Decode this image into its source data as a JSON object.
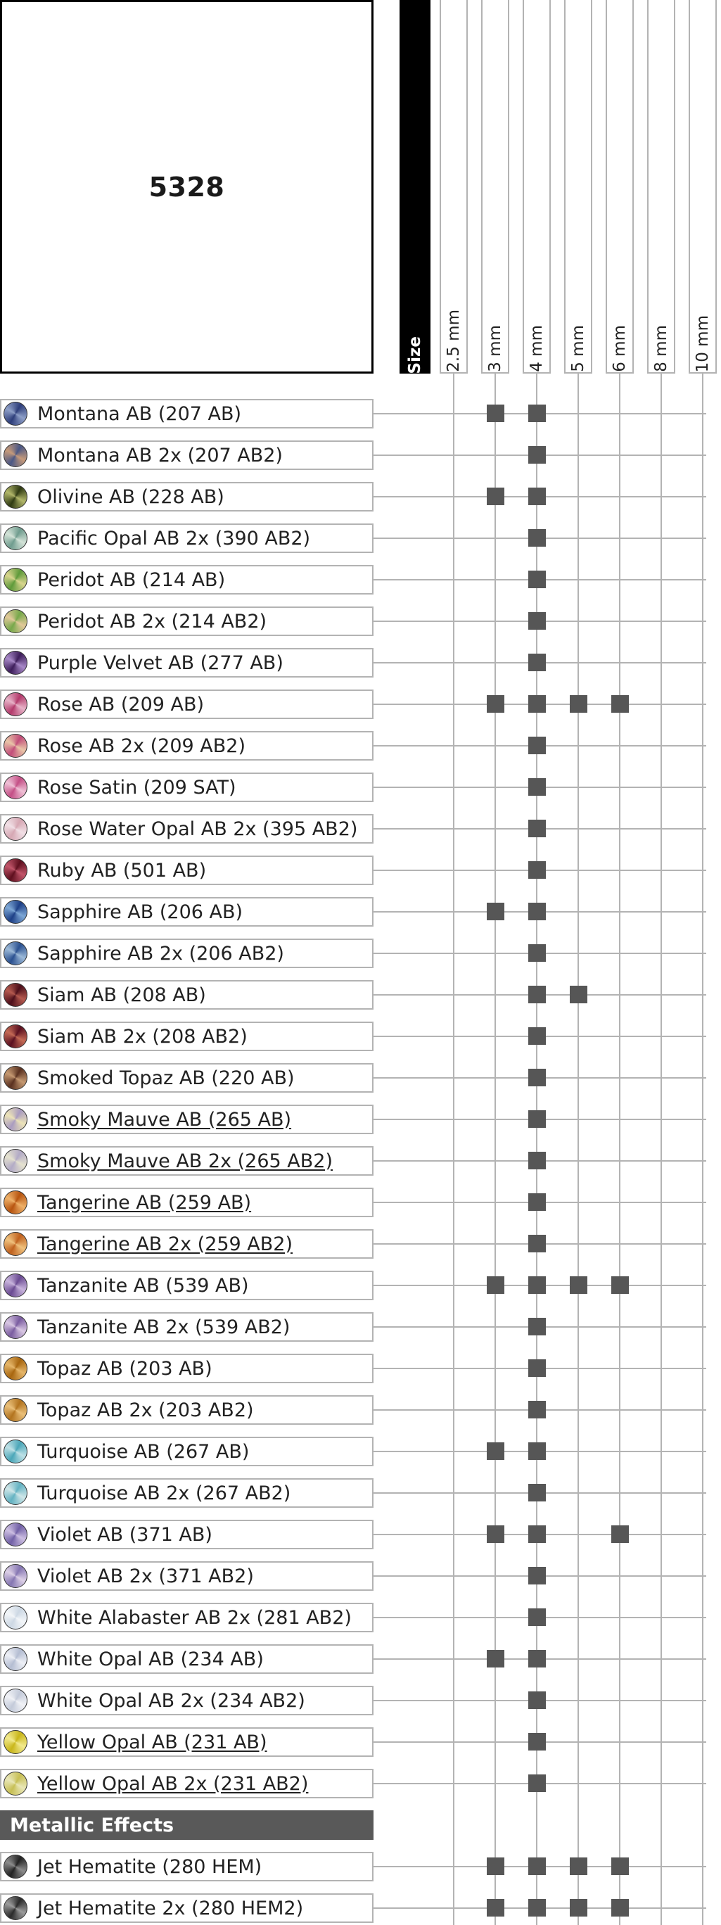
{
  "product": "5328",
  "size_header": "Size",
  "sizes": [
    "2.5 mm",
    "3 mm",
    "4 mm",
    "5 mm",
    "6 mm",
    "8 mm",
    "10 mm"
  ],
  "rows": [
    {
      "label": "Montana AB (207 AB)",
      "marks": [
        "3 mm",
        "4 mm"
      ],
      "colors": [
        "#2d3d7a",
        "#8fa0c8"
      ]
    },
    {
      "label": "Montana AB 2x (207 AB2)",
      "marks": [
        "4 mm"
      ],
      "colors": [
        "#4a5785",
        "#c69a7a"
      ]
    },
    {
      "label": "Olivine AB (228 AB)",
      "marks": [
        "3 mm",
        "4 mm"
      ],
      "colors": [
        "#2f3a12",
        "#b2b76a"
      ]
    },
    {
      "label": "Pacific Opal AB 2x (390 AB2)",
      "marks": [
        "4 mm"
      ],
      "colors": [
        "#6f9c8e",
        "#d4e3d8"
      ]
    },
    {
      "label": "Peridot AB (214 AB)",
      "marks": [
        "4 mm"
      ],
      "colors": [
        "#5e9a3a",
        "#d9d58e"
      ]
    },
    {
      "label": "Peridot AB 2x (214 AB2)",
      "marks": [
        "4 mm"
      ],
      "colors": [
        "#76a84a",
        "#e2c99a"
      ]
    },
    {
      "label": "Purple Velvet AB (277 AB)",
      "marks": [
        "4 mm"
      ],
      "colors": [
        "#3d1d5a",
        "#a889c8"
      ]
    },
    {
      "label": "Rose AB (209 AB)",
      "marks": [
        "3 mm",
        "4 mm",
        "5 mm",
        "6 mm"
      ],
      "colors": [
        "#b33a6b",
        "#e7b3c8"
      ]
    },
    {
      "label": "Rose AB 2x (209 AB2)",
      "marks": [
        "4 mm"
      ],
      "colors": [
        "#c24d7a",
        "#e9c5a8"
      ]
    },
    {
      "label": "Rose Satin (209 SAT)",
      "marks": [
        "4 mm"
      ],
      "colors": [
        "#c44f86",
        "#efc1d6"
      ]
    },
    {
      "label": "Rose Water Opal AB 2x (395 AB2)",
      "marks": [
        "4 mm"
      ],
      "colors": [
        "#d6a7b3",
        "#f1e0e6"
      ]
    },
    {
      "label": "Ruby AB (501 AB)",
      "marks": [
        "4 mm"
      ],
      "colors": [
        "#5e0f1e",
        "#c2556a"
      ]
    },
    {
      "label": "Sapphire AB (206 AB)",
      "marks": [
        "3 mm",
        "4 mm"
      ],
      "colors": [
        "#1d3f86",
        "#7ea8d6"
      ]
    },
    {
      "label": "Sapphire AB 2x (206 AB2)",
      "marks": [
        "4 mm"
      ],
      "colors": [
        "#2a5090",
        "#9dbad8"
      ]
    },
    {
      "label": "Siam AB (208 AB)",
      "marks": [
        "4 mm",
        "5 mm"
      ],
      "colors": [
        "#4c0e1a",
        "#b55a4f"
      ]
    },
    {
      "label": "Siam AB 2x (208 AB2)",
      "marks": [
        "4 mm"
      ],
      "colors": [
        "#5a1020",
        "#c46a55"
      ]
    },
    {
      "label": "Smoked Topaz AB (220 AB)",
      "marks": [
        "4 mm"
      ],
      "colors": [
        "#5a3120",
        "#c69a72"
      ]
    },
    {
      "label": "Smoky Mauve AB (265 AB)",
      "marks": [
        "4 mm"
      ],
      "colors": [
        "#a99bc0",
        "#ece3b8"
      ],
      "underline": true
    },
    {
      "label": "Smoky Mauve AB 2x (265 AB2)",
      "marks": [
        "4 mm"
      ],
      "colors": [
        "#b2aac6",
        "#e5e2cf"
      ],
      "underline": true
    },
    {
      "label": "Tangerine AB (259 AB)",
      "marks": [
        "4 mm"
      ],
      "colors": [
        "#b7540f",
        "#efb26a"
      ],
      "underline": true
    },
    {
      "label": "Tangerine AB 2x (259 AB2)",
      "marks": [
        "4 mm"
      ],
      "colors": [
        "#c0611e",
        "#f0c27e"
      ],
      "underline": true
    },
    {
      "label": "Tanzanite AB (539 AB)",
      "marks": [
        "3 mm",
        "4 mm",
        "5 mm",
        "6 mm"
      ],
      "colors": [
        "#6a4a92",
        "#c8b4dc"
      ]
    },
    {
      "label": "Tanzanite AB 2x (539 AB2)",
      "marks": [
        "4 mm"
      ],
      "colors": [
        "#7a5ca0",
        "#d9c8e3"
      ]
    },
    {
      "label": "Topaz AB (203 AB)",
      "marks": [
        "4 mm"
      ],
      "colors": [
        "#a8660f",
        "#e5b66a"
      ]
    },
    {
      "label": "Topaz AB 2x (203 AB2)",
      "marks": [
        "4 mm"
      ],
      "colors": [
        "#b2731e",
        "#eac07a"
      ]
    },
    {
      "label": "Turquoise AB (267 AB)",
      "marks": [
        "3 mm",
        "4 mm"
      ],
      "colors": [
        "#4aa6b8",
        "#bfe1e6"
      ]
    },
    {
      "label": "Turquoise AB 2x (267 AB2)",
      "marks": [
        "4 mm"
      ],
      "colors": [
        "#63b2c2",
        "#cfe6e8"
      ]
    },
    {
      "label": "Violet AB (371 AB)",
      "marks": [
        "3 mm",
        "4 mm",
        "6 mm"
      ],
      "colors": [
        "#7160a6",
        "#cdbfe2"
      ]
    },
    {
      "label": "Violet AB 2x (371 AB2)",
      "marks": [
        "4 mm"
      ],
      "colors": [
        "#8576b2",
        "#dcd0e6"
      ]
    },
    {
      "label": "White Alabaster AB 2x (281 AB2)",
      "marks": [
        "4 mm"
      ],
      "colors": [
        "#cdd8e4",
        "#f3f6f9"
      ]
    },
    {
      "label": "White Opal AB (234 AB)",
      "marks": [
        "3 mm",
        "4 mm"
      ],
      "colors": [
        "#b4bdd2",
        "#eef0f6"
      ]
    },
    {
      "label": "White Opal AB 2x (234 AB2)",
      "marks": [
        "4 mm"
      ],
      "colors": [
        "#c3cad9",
        "#f1f2f6"
      ]
    },
    {
      "label": "Yellow Opal AB (231 AB)",
      "marks": [
        "4 mm"
      ],
      "colors": [
        "#c9b61a",
        "#f2ea8e"
      ],
      "underline": true
    },
    {
      "label": "Yellow Opal AB 2x (231 AB2)",
      "marks": [
        "4 mm"
      ],
      "colors": [
        "#c7bf55",
        "#e9e7b8"
      ],
      "underline": true
    },
    {
      "section": "Metallic Effects"
    },
    {
      "label": "Jet Hematite (280 HEM)",
      "marks": [
        "3 mm",
        "4 mm",
        "5 mm",
        "6 mm"
      ],
      "colors": [
        "#222222",
        "#8c8c8c"
      ]
    },
    {
      "label": "Jet Hematite 2x (280 HEM2)",
      "marks": [
        "3 mm",
        "4 mm",
        "5 mm",
        "6 mm"
      ],
      "colors": [
        "#2a2a2a",
        "#9c9c9c"
      ]
    }
  ]
}
